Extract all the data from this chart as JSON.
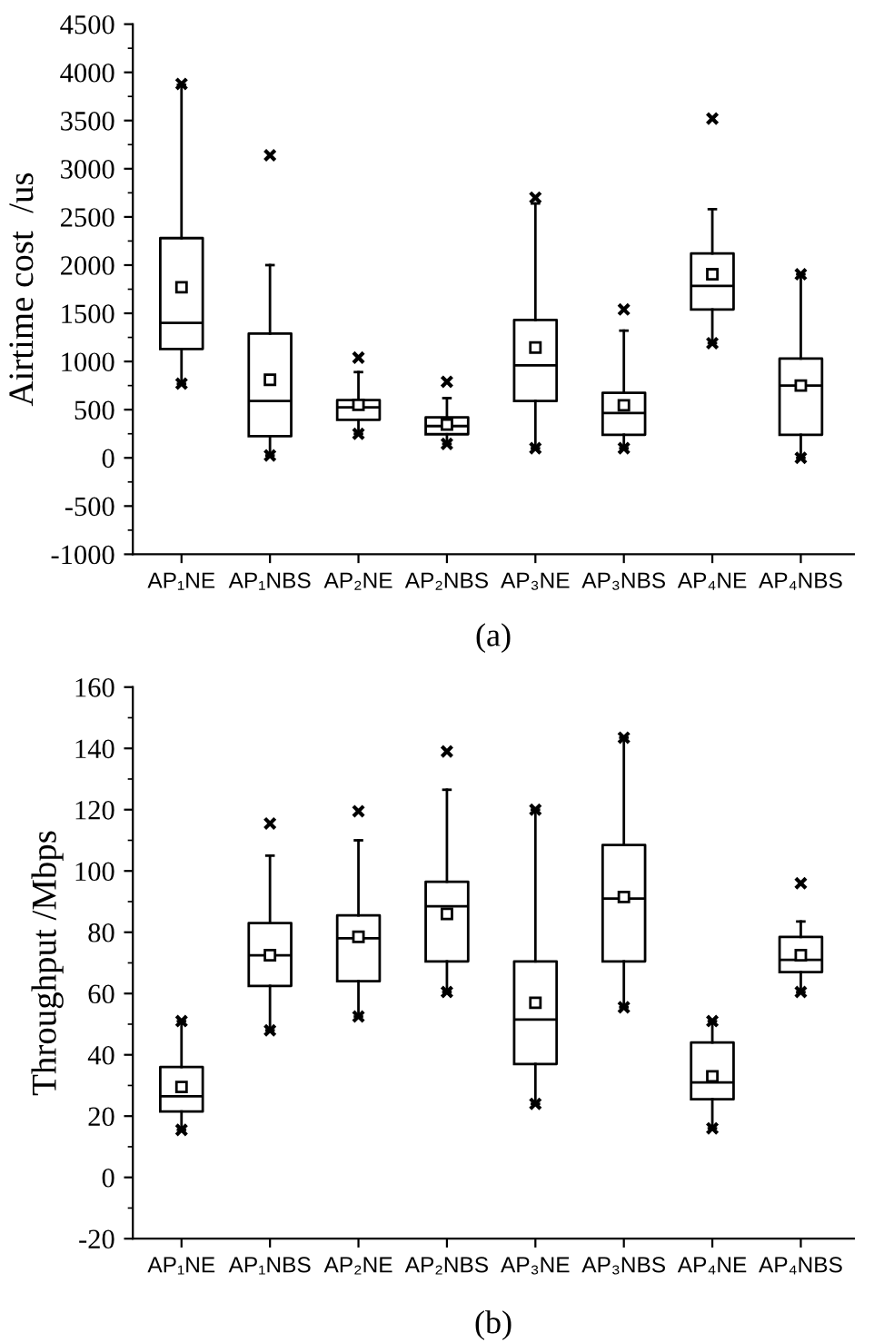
{
  "chart_data": [
    {
      "type": "box",
      "ylabel": "Airtime cost  /us",
      "categories": [
        "AP₁NE",
        "AP₁NBS",
        "AP₂NE",
        "AP₂NBS",
        "AP₃NE",
        "AP₃NBS",
        "AP₄NE",
        "AP₄NBS"
      ],
      "boxes": [
        {
          "low": 770,
          "q1": 1130,
          "median": 1400,
          "q3": 2280,
          "high": 3870,
          "mean": 1770,
          "outliers": [
            770,
            3880
          ]
        },
        {
          "low": 25,
          "q1": 225,
          "median": 590,
          "q3": 1290,
          "high": 2000,
          "mean": 810,
          "outliers": [
            25,
            3140
          ]
        },
        {
          "low": 250,
          "q1": 395,
          "median": 525,
          "q3": 600,
          "high": 890,
          "mean": 550,
          "outliers": [
            250,
            1040
          ]
        },
        {
          "low": 145,
          "q1": 245,
          "median": 330,
          "q3": 420,
          "high": 620,
          "mean": 345,
          "outliers": [
            145,
            790
          ]
        },
        {
          "low": 100,
          "q1": 590,
          "median": 960,
          "q3": 1430,
          "high": 2640,
          "mean": 1145,
          "outliers": [
            100,
            2700
          ]
        },
        {
          "low": 100,
          "q1": 240,
          "median": 465,
          "q3": 675,
          "high": 1320,
          "mean": 545,
          "outliers": [
            100,
            1540
          ]
        },
        {
          "low": 1190,
          "q1": 1540,
          "median": 1785,
          "q3": 2120,
          "high": 2580,
          "mean": 1905,
          "outliers": [
            1190,
            3520
          ]
        },
        {
          "low": 0,
          "q1": 240,
          "median": 750,
          "q3": 1030,
          "high": 1905,
          "mean": 750,
          "outliers": [
            0,
            1905
          ]
        }
      ],
      "ylim": [
        -1000,
        4500
      ],
      "yticks": [
        -1000,
        -500,
        0,
        500,
        1000,
        1500,
        2000,
        2500,
        3000,
        3500,
        4000,
        4500
      ],
      "annotations": [
        "(a)"
      ]
    },
    {
      "type": "box",
      "ylabel": "Throughput /Mbps",
      "categories": [
        "AP₁NE",
        "AP₁NBS",
        "AP₂NE",
        "AP₂NBS",
        "AP₃NE",
        "AP₃NBS",
        "AP₄NE",
        "AP₄NBS"
      ],
      "boxes": [
        {
          "low": 15.5,
          "q1": 21.5,
          "median": 26.5,
          "q3": 36,
          "high": 51,
          "mean": 29.5,
          "outliers": [
            15.5,
            51
          ]
        },
        {
          "low": 48,
          "q1": 62.5,
          "median": 72.5,
          "q3": 83,
          "high": 105,
          "mean": 72.5,
          "outliers": [
            48,
            115.5
          ]
        },
        {
          "low": 52.5,
          "q1": 64,
          "median": 78,
          "q3": 85.5,
          "high": 110,
          "mean": 78.5,
          "outliers": [
            52.5,
            119.5
          ]
        },
        {
          "low": 60.5,
          "q1": 70.5,
          "median": 88.5,
          "q3": 96.5,
          "high": 126.5,
          "mean": 86,
          "outliers": [
            60.5,
            139
          ]
        },
        {
          "low": 24,
          "q1": 37,
          "median": 51.5,
          "q3": 70.5,
          "high": 120,
          "mean": 57,
          "outliers": [
            24,
            120
          ]
        },
        {
          "low": 55.5,
          "q1": 70.5,
          "median": 91,
          "q3": 108.5,
          "high": 143.5,
          "mean": 91.5,
          "outliers": [
            55.5,
            143.5
          ]
        },
        {
          "low": 16,
          "q1": 25.5,
          "median": 31,
          "q3": 44,
          "high": 51,
          "mean": 33,
          "outliers": [
            16,
            51
          ]
        },
        {
          "low": 60.5,
          "q1": 67,
          "median": 71,
          "q3": 78.5,
          "high": 83.5,
          "mean": 72.5,
          "outliers": [
            60.5,
            96
          ]
        }
      ],
      "ylim": [
        -20,
        160
      ],
      "yticks": [
        -20,
        0,
        20,
        40,
        60,
        80,
        100,
        120,
        140,
        160
      ],
      "annotations": [
        "(b)"
      ]
    }
  ]
}
